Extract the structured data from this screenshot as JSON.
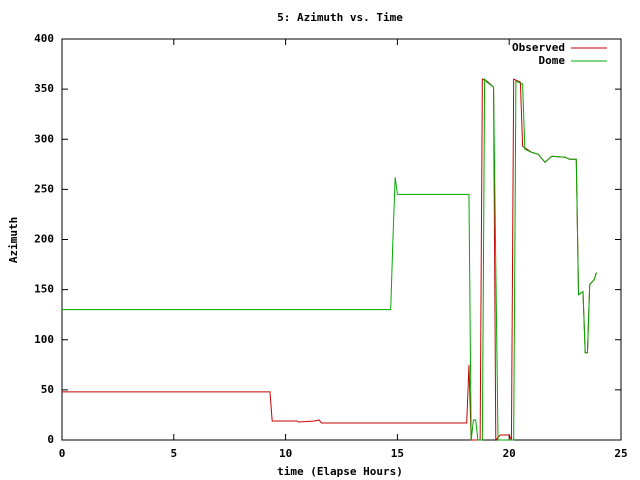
{
  "chart_data": {
    "type": "line",
    "title": "5: Azimuth vs. Time",
    "x_label": "time (Elapse Hours)",
    "y_label": "Azimuth",
    "xlim": [
      0,
      25
    ],
    "xticks": [
      0,
      5,
      10,
      15,
      20,
      25
    ],
    "ylim": [
      0,
      400
    ],
    "yticks": [
      0,
      50,
      100,
      150,
      200,
      250,
      300,
      350,
      400
    ],
    "grid": false,
    "legend": "top-right",
    "series": [
      {
        "name": "Observed",
        "color": "#cc0000",
        "x": [
          0,
          9.3,
          9.4,
          10.5,
          10.6,
          11.3,
          11.5,
          11.6,
          18.1,
          18.2,
          18.3,
          18.4,
          18.7,
          18.8,
          19.0,
          19.3,
          19.4,
          19.6,
          20.0,
          20.1,
          20.2,
          20.5,
          20.6,
          21.0,
          21.3,
          21.6,
          21.9,
          22.5,
          22.7,
          23.0,
          23.1,
          23.3,
          23.4,
          23.5,
          23.6,
          23.8,
          23.9
        ],
        "values": [
          48,
          48,
          19,
          19,
          18,
          19,
          20,
          17,
          17,
          75,
          0,
          0,
          0,
          360,
          358,
          352,
          0,
          5,
          5,
          0,
          360,
          357,
          293,
          287,
          285,
          277,
          283,
          282,
          280,
          280,
          145,
          148,
          87,
          87,
          155,
          160,
          167
        ]
      },
      {
        "name": "Dome",
        "color": "#00aa00",
        "x": [
          0,
          14.7,
          14.8,
          14.9,
          15.0,
          18.2,
          18.3,
          18.4,
          18.5,
          18.6,
          18.8,
          18.9,
          19.0,
          19.3,
          19.5,
          20.2,
          20.3,
          20.6,
          20.7,
          21.0,
          21.3,
          21.6,
          21.9,
          22.5,
          22.7,
          23.0,
          23.1,
          23.3,
          23.4,
          23.5,
          23.6,
          23.8,
          23.9
        ],
        "values": [
          130,
          130,
          200,
          262,
          245,
          245,
          0,
          20,
          20,
          0,
          0,
          360,
          357,
          352,
          0,
          0,
          358,
          355,
          290,
          287,
          285,
          277,
          283,
          282,
          280,
          280,
          145,
          148,
          87,
          87,
          155,
          160,
          167
        ]
      }
    ]
  }
}
